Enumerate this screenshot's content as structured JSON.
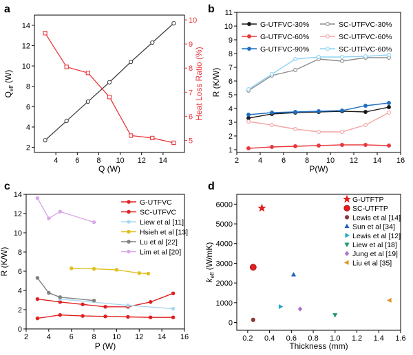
{
  "chart_data": [
    {
      "panel": "a",
      "type": "line",
      "x": [
        3,
        5,
        7,
        9,
        11,
        13,
        15
      ],
      "xlabel": "Q (W)",
      "xlim": [
        2,
        16
      ],
      "xticks": [
        4,
        6,
        8,
        10,
        12,
        14
      ],
      "series": [
        {
          "name": "Q_eff",
          "axis": "left",
          "color": "#404040",
          "marker": "circle",
          "values": [
            2.7,
            4.6,
            6.5,
            8.4,
            10.4,
            12.3,
            14.2
          ]
        },
        {
          "name": "Heat Loss Ratio",
          "axis": "right",
          "color": "#e8383d",
          "marker": "square",
          "values": [
            9.45,
            8.05,
            7.8,
            6.8,
            5.2,
            5.1,
            4.9
          ]
        }
      ],
      "y_left": {
        "label_main": "Q",
        "label_sub": "eff",
        "label_unit": " (W)",
        "lim": [
          1.5,
          15
        ],
        "ticks": [
          2,
          4,
          6,
          8,
          10,
          12,
          14
        ]
      },
      "y_right": {
        "label": "Heat Loss Ratio (%)",
        "lim": [
          4.5,
          10.2
        ],
        "ticks": [
          5,
          6,
          7,
          8,
          9,
          10
        ],
        "color": "#e8383d"
      }
    },
    {
      "panel": "b",
      "type": "line",
      "x": [
        3,
        5,
        7,
        9,
        11,
        13,
        15
      ],
      "xlabel": "P(W)",
      "ylabel": "R (K/W)",
      "xlim": [
        2,
        16
      ],
      "ylim": [
        0.8,
        11
      ],
      "xticks": [
        2,
        4,
        6,
        8,
        10,
        12,
        14,
        16
      ],
      "yticks": [
        1,
        2,
        3,
        4,
        5,
        6,
        7,
        8,
        9,
        10,
        11
      ],
      "legend": "top-left",
      "series": [
        {
          "name": "G-UTFVC-30%",
          "color": "#1a1a1a",
          "filled": true,
          "values": [
            3.3,
            3.6,
            3.7,
            3.75,
            3.8,
            3.75,
            4.1
          ]
        },
        {
          "name": "SC-UTFVC-30%",
          "color": "#8c8c8c",
          "filled": false,
          "values": [
            5.3,
            6.4,
            6.8,
            7.6,
            7.45,
            7.7,
            7.7
          ]
        },
        {
          "name": "G-UTFVC-60%",
          "color": "#e8383d",
          "filled": true,
          "values": [
            1.1,
            1.2,
            1.25,
            1.3,
            1.35,
            1.35,
            1.3
          ]
        },
        {
          "name": "SC-UTFVC-60%",
          "color": "#f5a3a3",
          "filled": false,
          "values": [
            3.05,
            2.8,
            2.5,
            2.3,
            2.3,
            2.8,
            3.7
          ]
        },
        {
          "name": "G-UTFVC-90%",
          "color": "#1f6fc1",
          "filled": true,
          "values": [
            3.55,
            3.7,
            3.75,
            3.8,
            3.85,
            4.2,
            4.4
          ]
        },
        {
          "name": "SC-UTFVC-60%",
          "color": "#8fd3f5",
          "filled": false,
          "values": [
            5.4,
            6.5,
            7.6,
            7.75,
            7.75,
            7.8,
            7.9
          ]
        }
      ]
    },
    {
      "panel": "c",
      "type": "line",
      "xlabel": "P (W)",
      "ylabel": "R (K/W)",
      "xlim": [
        2,
        16
      ],
      "ylim": [
        0,
        14
      ],
      "xticks": [
        2,
        4,
        6,
        8,
        10,
        12,
        14,
        16
      ],
      "yticks": [
        0,
        2,
        4,
        6,
        8,
        10,
        12,
        14
      ],
      "legend": "top-right",
      "series": [
        {
          "name": "G-UTFVC",
          "color": "#e02020",
          "x": [
            3,
            5,
            7,
            9,
            11,
            13,
            15
          ],
          "values": [
            1.1,
            1.45,
            1.35,
            1.3,
            1.25,
            1.2,
            1.2
          ]
        },
        {
          "name": "SC-UTFVC",
          "color": "#e02020",
          "x": [
            3,
            5,
            7,
            9,
            11,
            13,
            15
          ],
          "values": [
            3.1,
            2.8,
            2.55,
            2.3,
            2.3,
            2.8,
            3.7
          ]
        },
        {
          "name": "Liew et al [11]",
          "color": "#a8d8f0",
          "x": [
            5,
            11,
            15
          ],
          "values": [
            3.1,
            2.45,
            2.1
          ]
        },
        {
          "name": "Hsieh et al [13]",
          "color": "#e0c020",
          "x": [
            6,
            8,
            10,
            12,
            12.8
          ],
          "values": [
            6.3,
            6.25,
            6.15,
            5.8,
            5.75
          ]
        },
        {
          "name": "Lu et al [22]",
          "color": "#808080",
          "x": [
            3,
            4,
            5,
            8
          ],
          "values": [
            5.3,
            3.75,
            3.3,
            2.95
          ]
        },
        {
          "name": "Lim et al [20]",
          "color": "#d9a8e8",
          "x": [
            3,
            4,
            5,
            8
          ],
          "values": [
            13.6,
            11.5,
            12.2,
            11.1
          ]
        }
      ]
    },
    {
      "panel": "d",
      "type": "scatter",
      "xlabel": "Thickness (mm)",
      "ylabel_main": "k",
      "ylabel_sub": "eff",
      "ylabel_unit": " (W/mK)",
      "xlim": [
        0.1,
        1.6
      ],
      "ylim": [
        -400,
        6500
      ],
      "xticks": [
        0.2,
        0.4,
        0.6,
        0.8,
        1.0,
        1.2,
        1.4,
        1.6
      ],
      "xtick_labels": [
        "0.2",
        "0.4",
        "0.6",
        "0.8",
        "1.0",
        "1.2",
        "1.4",
        "1.6"
      ],
      "yticks": [
        0,
        1000,
        2000,
        3000,
        4000,
        5000,
        6000
      ],
      "legend": "top-right",
      "points": [
        {
          "name": "G-UTFTP",
          "x": 0.33,
          "y": 5800,
          "color": "#e02020",
          "marker": "star"
        },
        {
          "name": "SC-UTFTP",
          "x": 0.25,
          "y": 2800,
          "color": "#e02020",
          "marker": "ball"
        },
        {
          "name": "Lewis et al [14]",
          "x": 0.25,
          "y": 130,
          "color": "#8b3a3a",
          "marker": "dot"
        },
        {
          "name": "Sun et al [34]",
          "x": 0.62,
          "y": 2420,
          "color": "#1f5fbf",
          "marker": "triangle-up"
        },
        {
          "name": "Lewis et al [12]",
          "x": 0.5,
          "y": 800,
          "color": "#1ea8c8",
          "marker": "triangle-right"
        },
        {
          "name": "Liew et al [18]",
          "x": 1.0,
          "y": 380,
          "color": "#1a9a6a",
          "marker": "triangle-down"
        },
        {
          "name": "Jung et al [19]",
          "x": 0.68,
          "y": 680,
          "color": "#b070d0",
          "marker": "diamond"
        },
        {
          "name": "Liu et al [35]",
          "x": 1.5,
          "y": 1120,
          "color": "#e0901a",
          "marker": "triangle-left"
        }
      ]
    }
  ]
}
